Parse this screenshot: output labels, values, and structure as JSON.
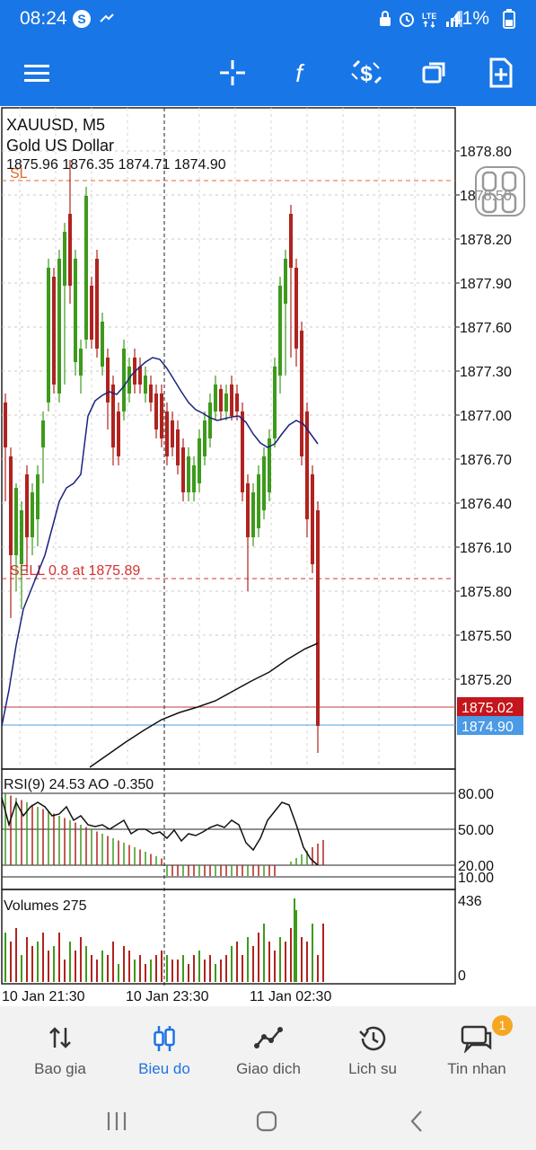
{
  "status_bar": {
    "time": "08:24",
    "battery": "41%",
    "icons": [
      "skype-icon",
      "tradingview-icon",
      "alarm-clock-icon",
      "lte-icon",
      "signal-icon",
      "battery-icon"
    ]
  },
  "toolbar": {
    "buttons": [
      "menu-icon",
      "crosshair-icon",
      "function-icon",
      "new-order-icon",
      "windows-icon",
      "new-document-icon"
    ]
  },
  "chart": {
    "symbol_line": "XAUUSD, M5",
    "description": "Gold US Dollar",
    "ohlc": "1875.96 1876.35 1874.71 1874.90",
    "sl_label": "SL",
    "order_label": "SELL 0.8 at 1875.89",
    "price_axis": [
      "1878.80",
      "1878.50",
      "1878.20",
      "1877.90",
      "1877.60",
      "1877.30",
      "1877.00",
      "1876.70",
      "1876.40",
      "1876.10",
      "1875.80",
      "1875.50",
      "1875.20"
    ],
    "ask_price": "1875.02",
    "bid_price": "1874.90",
    "indicator_label": "RSI(9) 24.53 AO -0.350",
    "indicator_axis": [
      "80.00",
      "50.00",
      "20.00",
      "10.00"
    ],
    "volumes_label": "Volumes 275",
    "volumes_axis": [
      "436",
      "0"
    ],
    "time_axis": [
      "10 Jan 21:30",
      "10 Jan 23:30",
      "11 Jan 02:30"
    ],
    "colors": {
      "bull": "#3d9a1c",
      "bear": "#b0231f",
      "ask_line": "#c43b3b",
      "bid_line": "#52a2e0",
      "ma_fast": "#1a237e",
      "ma_slow": "#111111",
      "sl_line": "#e06a2e",
      "order_line": "#d93030"
    }
  },
  "bottom_nav": {
    "items": [
      {
        "label": "Bao gia",
        "icon": "sort-arrows-icon"
      },
      {
        "label": "Bieu do",
        "icon": "candlestick-icon"
      },
      {
        "label": "Giao dich",
        "icon": "trade-line-icon"
      },
      {
        "label": "Lich su",
        "icon": "history-icon"
      },
      {
        "label": "Tin nhan",
        "icon": "chat-icon",
        "badge": "1"
      }
    ]
  },
  "system_nav": [
    "recents-button",
    "home-button",
    "back-button"
  ]
}
